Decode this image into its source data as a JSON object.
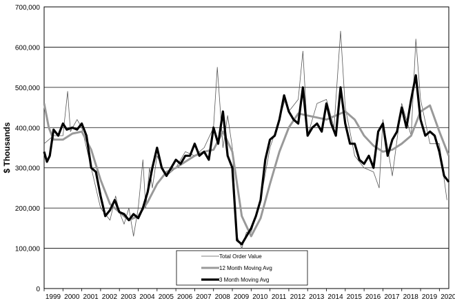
{
  "chart_data": {
    "type": "line",
    "ylabel": "$ Thousands",
    "ylim": [
      0,
      700000
    ],
    "xlim": [
      1999.0,
      2020.5
    ],
    "yticks": [
      "0",
      "100,000",
      "200,000",
      "300,000",
      "400,000",
      "500,000",
      "600,000",
      "700,000"
    ],
    "xticks": [
      "1999",
      "2000",
      "2001",
      "2002",
      "2003",
      "2004",
      "2005",
      "2006",
      "2007",
      "2008",
      "2009",
      "2010",
      "2011",
      "2012",
      "2013",
      "2014",
      "2015",
      "2016",
      "2017",
      "2018",
      "2019",
      "2020"
    ],
    "grid": "horizontal",
    "legend_position": "bottom-center",
    "series": [
      {
        "name": "Total Order Value",
        "color": "#555555",
        "x": [
          1999.0,
          1999.5,
          2000.0,
          2000.25,
          2000.4,
          2000.75,
          2001.0,
          2001.5,
          2002.0,
          2002.5,
          2002.8,
          2003.0,
          2003.25,
          2003.5,
          2003.75,
          2004.0,
          2004.25,
          2004.4,
          2004.6,
          2004.75,
          2005.0,
          2005.5,
          2006.0,
          2006.5,
          2007.0,
          2007.5,
          2008.0,
          2008.2,
          2008.5,
          2008.75,
          2009.0,
          2009.25,
          2009.5,
          2009.75,
          2010.0,
          2010.5,
          2011.0,
          2011.5,
          2011.8,
          2012.0,
          2012.5,
          2012.75,
          2013.0,
          2013.5,
          2014.0,
          2014.4,
          2014.75,
          2015.0,
          2015.5,
          2016.0,
          2016.5,
          2016.8,
          2017.0,
          2017.5,
          2018.0,
          2018.5,
          2018.75,
          2019.0,
          2019.5,
          2020.0,
          2020.4
        ],
        "values": [
          360000,
          380000,
          380000,
          490000,
          390000,
          420000,
          400000,
          300000,
          200000,
          170000,
          230000,
          190000,
          160000,
          200000,
          130000,
          200000,
          320000,
          200000,
          300000,
          250000,
          330000,
          280000,
          300000,
          340000,
          330000,
          350000,
          400000,
          550000,
          350000,
          430000,
          350000,
          130000,
          100000,
          140000,
          140000,
          220000,
          350000,
          420000,
          470000,
          440000,
          470000,
          590000,
          380000,
          460000,
          470000,
          400000,
          640000,
          450000,
          330000,
          300000,
          290000,
          250000,
          420000,
          280000,
          460000,
          380000,
          620000,
          470000,
          360000,
          360000,
          220000
        ]
      },
      {
        "name": "12 Month Moving Avg",
        "color": "#999999",
        "x": [
          1999.0,
          1999.25,
          1999.5,
          2000.0,
          2000.5,
          2001.0,
          2001.5,
          2002.0,
          2002.5,
          2003.0,
          2003.5,
          2004.0,
          2004.5,
          2005.0,
          2005.5,
          2006.0,
          2006.5,
          2007.0,
          2007.5,
          2008.0,
          2008.5,
          2009.0,
          2009.5,
          2010.0,
          2010.5,
          2011.0,
          2011.5,
          2012.0,
          2012.5,
          2013.0,
          2013.5,
          2014.0,
          2014.5,
          2015.0,
          2015.5,
          2016.0,
          2016.5,
          2017.0,
          2017.5,
          2018.0,
          2018.5,
          2019.0,
          2019.5,
          2020.0,
          2020.5
        ],
        "values": [
          460000,
          400000,
          370000,
          370000,
          385000,
          390000,
          345000,
          270000,
          210000,
          190000,
          170000,
          180000,
          215000,
          260000,
          290000,
          300000,
          315000,
          330000,
          340000,
          345000,
          390000,
          340000,
          180000,
          130000,
          175000,
          260000,
          340000,
          400000,
          435000,
          430000,
          425000,
          420000,
          430000,
          440000,
          420000,
          380000,
          355000,
          340000,
          345000,
          360000,
          380000,
          440000,
          455000,
          390000,
          330000
        ]
      },
      {
        "name": "3 Month Moving Avg",
        "color": "#000000",
        "x": [
          1999.0,
          1999.15,
          1999.3,
          1999.5,
          1999.75,
          2000.0,
          2000.2,
          2000.5,
          2000.75,
          2001.0,
          2001.25,
          2001.5,
          2001.75,
          2002.0,
          2002.25,
          2002.5,
          2002.75,
          2003.0,
          2003.25,
          2003.5,
          2003.75,
          2004.0,
          2004.25,
          2004.5,
          2004.75,
          2005.0,
          2005.25,
          2005.5,
          2005.75,
          2006.0,
          2006.25,
          2006.5,
          2006.75,
          2007.0,
          2007.25,
          2007.5,
          2007.75,
          2008.0,
          2008.25,
          2008.5,
          2008.75,
          2009.0,
          2009.25,
          2009.5,
          2009.75,
          2010.0,
          2010.25,
          2010.5,
          2010.75,
          2011.0,
          2011.25,
          2011.5,
          2011.75,
          2012.0,
          2012.25,
          2012.5,
          2012.75,
          2013.0,
          2013.25,
          2013.5,
          2013.75,
          2014.0,
          2014.25,
          2014.5,
          2014.75,
          2015.0,
          2015.25,
          2015.5,
          2015.75,
          2016.0,
          2016.25,
          2016.5,
          2016.75,
          2017.0,
          2017.25,
          2017.5,
          2017.75,
          2018.0,
          2018.25,
          2018.5,
          2018.75,
          2019.0,
          2019.25,
          2019.5,
          2019.75,
          2020.0,
          2020.25,
          2020.5
        ],
        "values": [
          340000,
          315000,
          330000,
          395000,
          380000,
          410000,
          395000,
          400000,
          395000,
          410000,
          380000,
          300000,
          290000,
          230000,
          180000,
          195000,
          220000,
          190000,
          185000,
          170000,
          185000,
          175000,
          200000,
          240000,
          300000,
          350000,
          300000,
          280000,
          300000,
          320000,
          310000,
          330000,
          330000,
          360000,
          330000,
          340000,
          320000,
          400000,
          360000,
          440000,
          330000,
          300000,
          120000,
          110000,
          130000,
          150000,
          180000,
          220000,
          320000,
          370000,
          380000,
          420000,
          480000,
          440000,
          420000,
          410000,
          500000,
          380000,
          400000,
          410000,
          390000,
          460000,
          410000,
          380000,
          500000,
          410000,
          360000,
          360000,
          320000,
          310000,
          330000,
          300000,
          390000,
          410000,
          330000,
          370000,
          390000,
          450000,
          400000,
          470000,
          530000,
          420000,
          380000,
          390000,
          380000,
          340000,
          280000,
          265000
        ]
      }
    ]
  }
}
